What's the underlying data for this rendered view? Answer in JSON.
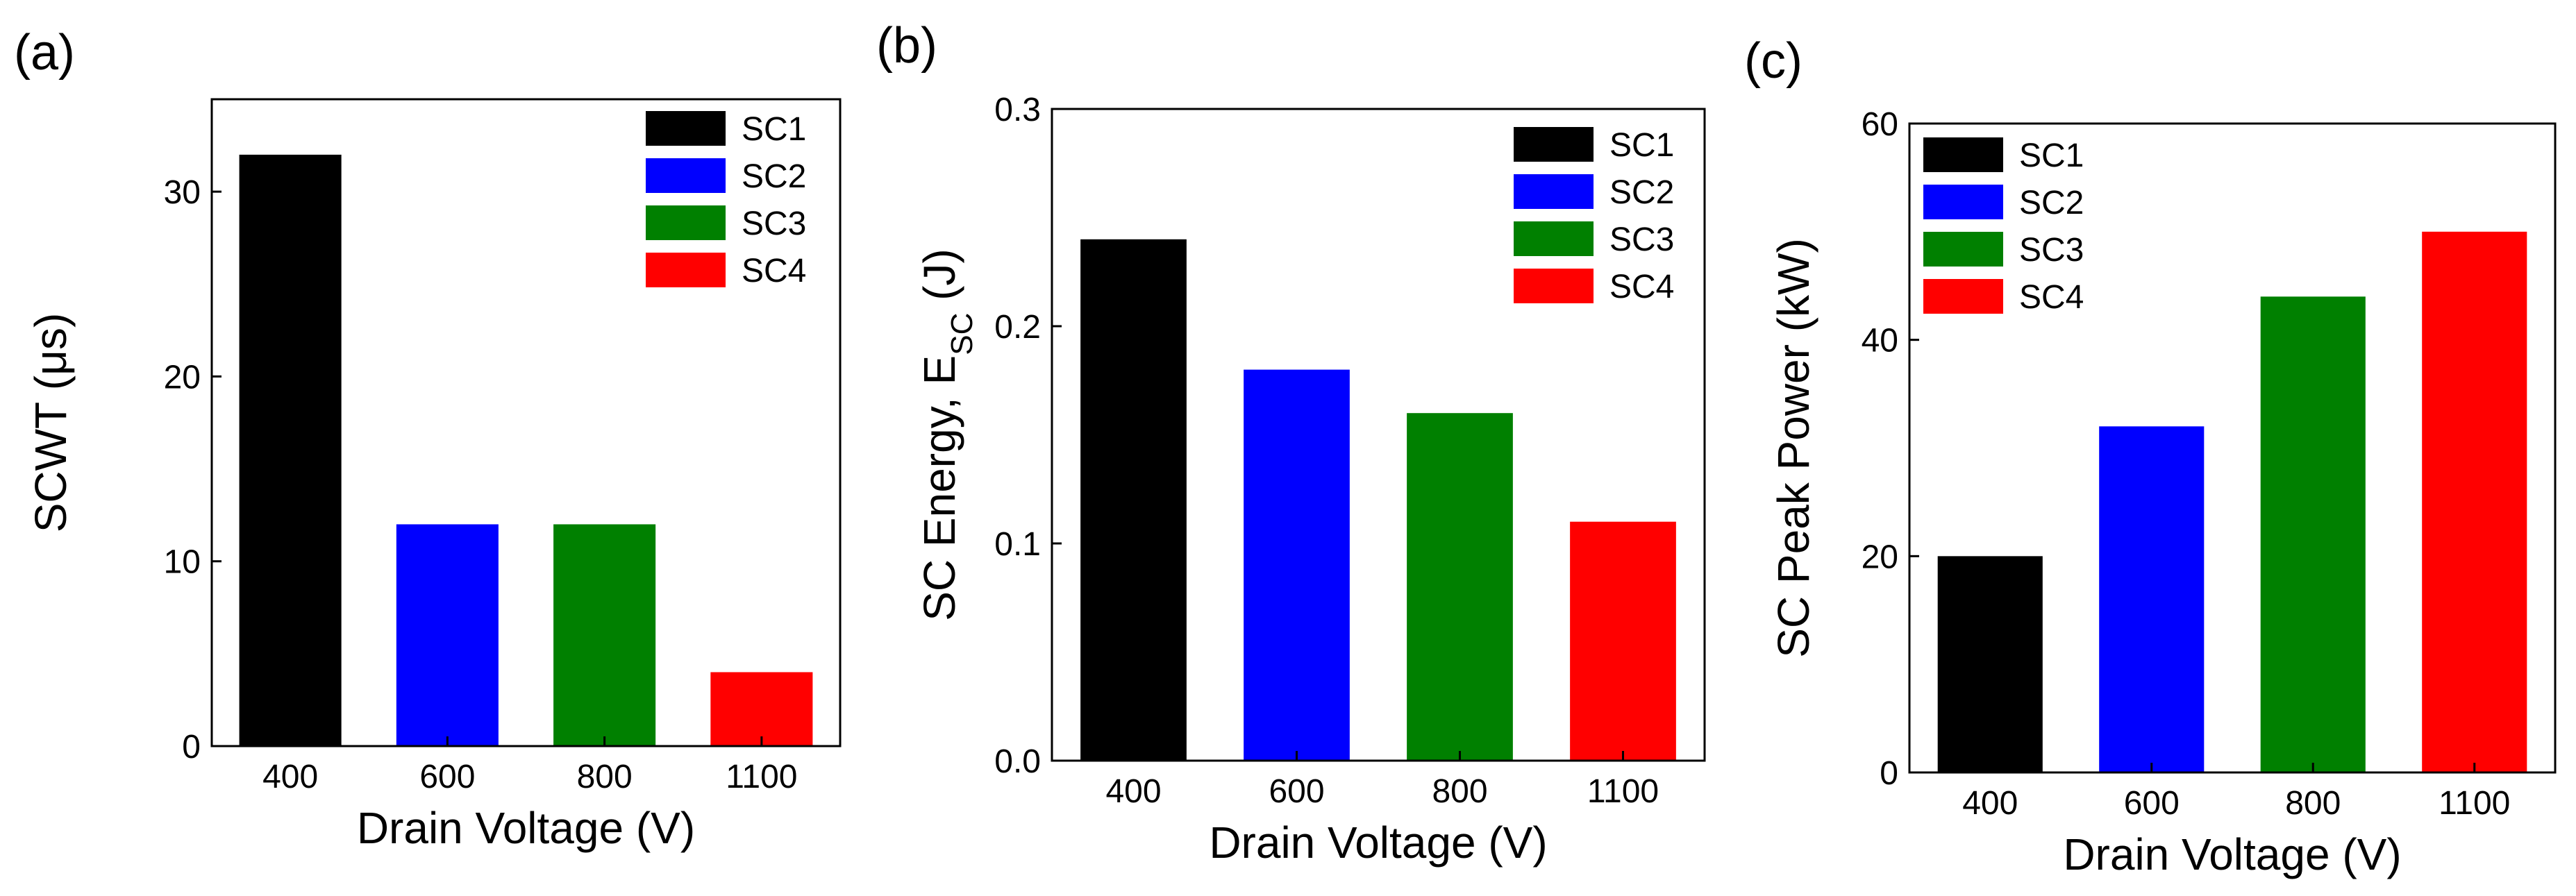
{
  "chart_data": [
    {
      "type": "bar",
      "panel_label": "(a)",
      "categories": [
        "400",
        "600",
        "800",
        "1100"
      ],
      "values": [
        32,
        12,
        12,
        4
      ],
      "bar_labels": [
        "SC1",
        "SC2",
        "SC3",
        "SC4"
      ],
      "colors": [
        "#000000",
        "#0000ff",
        "#008000",
        "#ff0000"
      ],
      "xlabel": "Drain Voltage (V)",
      "ylabel": "SCWT (μs)",
      "ylabel_sub": "",
      "ylabel_tail": "",
      "ylim": [
        0,
        35
      ],
      "yticks": [
        0,
        10,
        20,
        30
      ],
      "ytick_labels": [
        "0",
        "10",
        "20",
        "30"
      ],
      "legend": {
        "position": "top-right",
        "entries": [
          "SC1",
          "SC2",
          "SC3",
          "SC4"
        ]
      },
      "grid": false
    },
    {
      "type": "bar",
      "panel_label": "(b)",
      "categories": [
        "400",
        "600",
        "800",
        "1100"
      ],
      "values": [
        0.24,
        0.18,
        0.16,
        0.11
      ],
      "bar_labels": [
        "SC1",
        "SC2",
        "SC3",
        "SC4"
      ],
      "colors": [
        "#000000",
        "#0000ff",
        "#008000",
        "#ff0000"
      ],
      "xlabel": "Drain Voltage (V)",
      "ylabel": "SC Energy, E",
      "ylabel_sub": "SC",
      "ylabel_tail": " (J)",
      "ylim": [
        0,
        0.3
      ],
      "yticks": [
        0,
        0.1,
        0.2,
        0.3
      ],
      "ytick_labels": [
        "0.0",
        "0.1",
        "0.2",
        "0.3"
      ],
      "legend": {
        "position": "top-right",
        "entries": [
          "SC1",
          "SC2",
          "SC3",
          "SC4"
        ]
      },
      "grid": false
    },
    {
      "type": "bar",
      "panel_label": "(c)",
      "categories": [
        "400",
        "600",
        "800",
        "1100"
      ],
      "values": [
        20,
        32,
        44,
        50
      ],
      "bar_labels": [
        "SC1",
        "SC2",
        "SC3",
        "SC4"
      ],
      "colors": [
        "#000000",
        "#0000ff",
        "#008000",
        "#ff0000"
      ],
      "xlabel": "Drain Voltage (V)",
      "ylabel": "SC Peak Power (kW)",
      "ylabel_sub": "",
      "ylabel_tail": "",
      "ylim": [
        0,
        60
      ],
      "yticks": [
        0,
        20,
        40,
        60
      ],
      "ytick_labels": [
        "0",
        "20",
        "40",
        "60"
      ],
      "legend": {
        "position": "top-left",
        "entries": [
          "SC1",
          "SC2",
          "SC3",
          "SC4"
        ]
      },
      "grid": false
    }
  ]
}
